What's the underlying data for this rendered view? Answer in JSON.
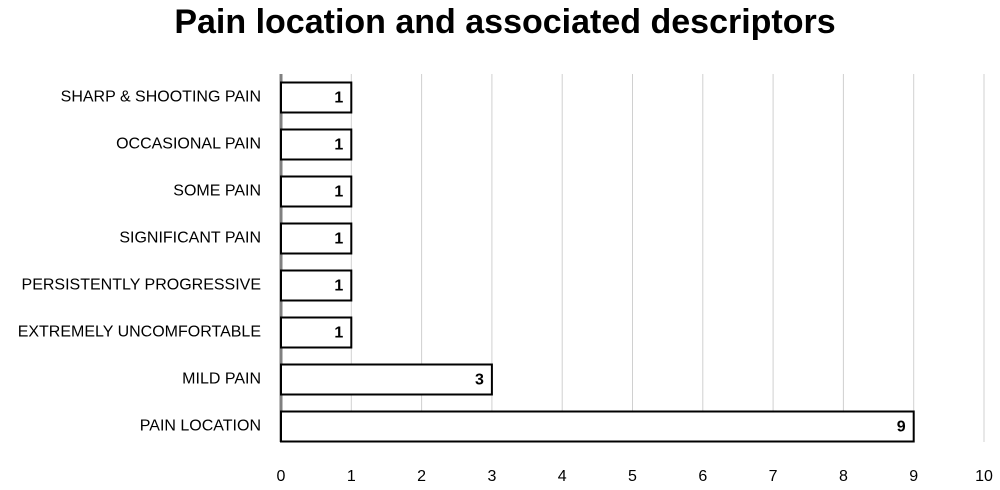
{
  "chart_data": {
    "type": "bar",
    "title": "Pain location and associated descriptors",
    "categories": [
      "SHARP & SHOOTING PAIN",
      "OCCASIONAL PAIN",
      "SOME PAIN",
      "SIGNIFICANT PAIN",
      "PERSISTENTLY PROGRESSIVE",
      "EXTREMELY UNCOMFORTABLE",
      "MILD PAIN",
      "PAIN LOCATION"
    ],
    "values": [
      1,
      1,
      1,
      1,
      1,
      1,
      3,
      9
    ],
    "color": "#ffffff",
    "xlim": [
      0,
      10
    ],
    "xticks": [
      0,
      1,
      2,
      3,
      4,
      5,
      6,
      7,
      8,
      9,
      10
    ],
    "grid": true
  }
}
